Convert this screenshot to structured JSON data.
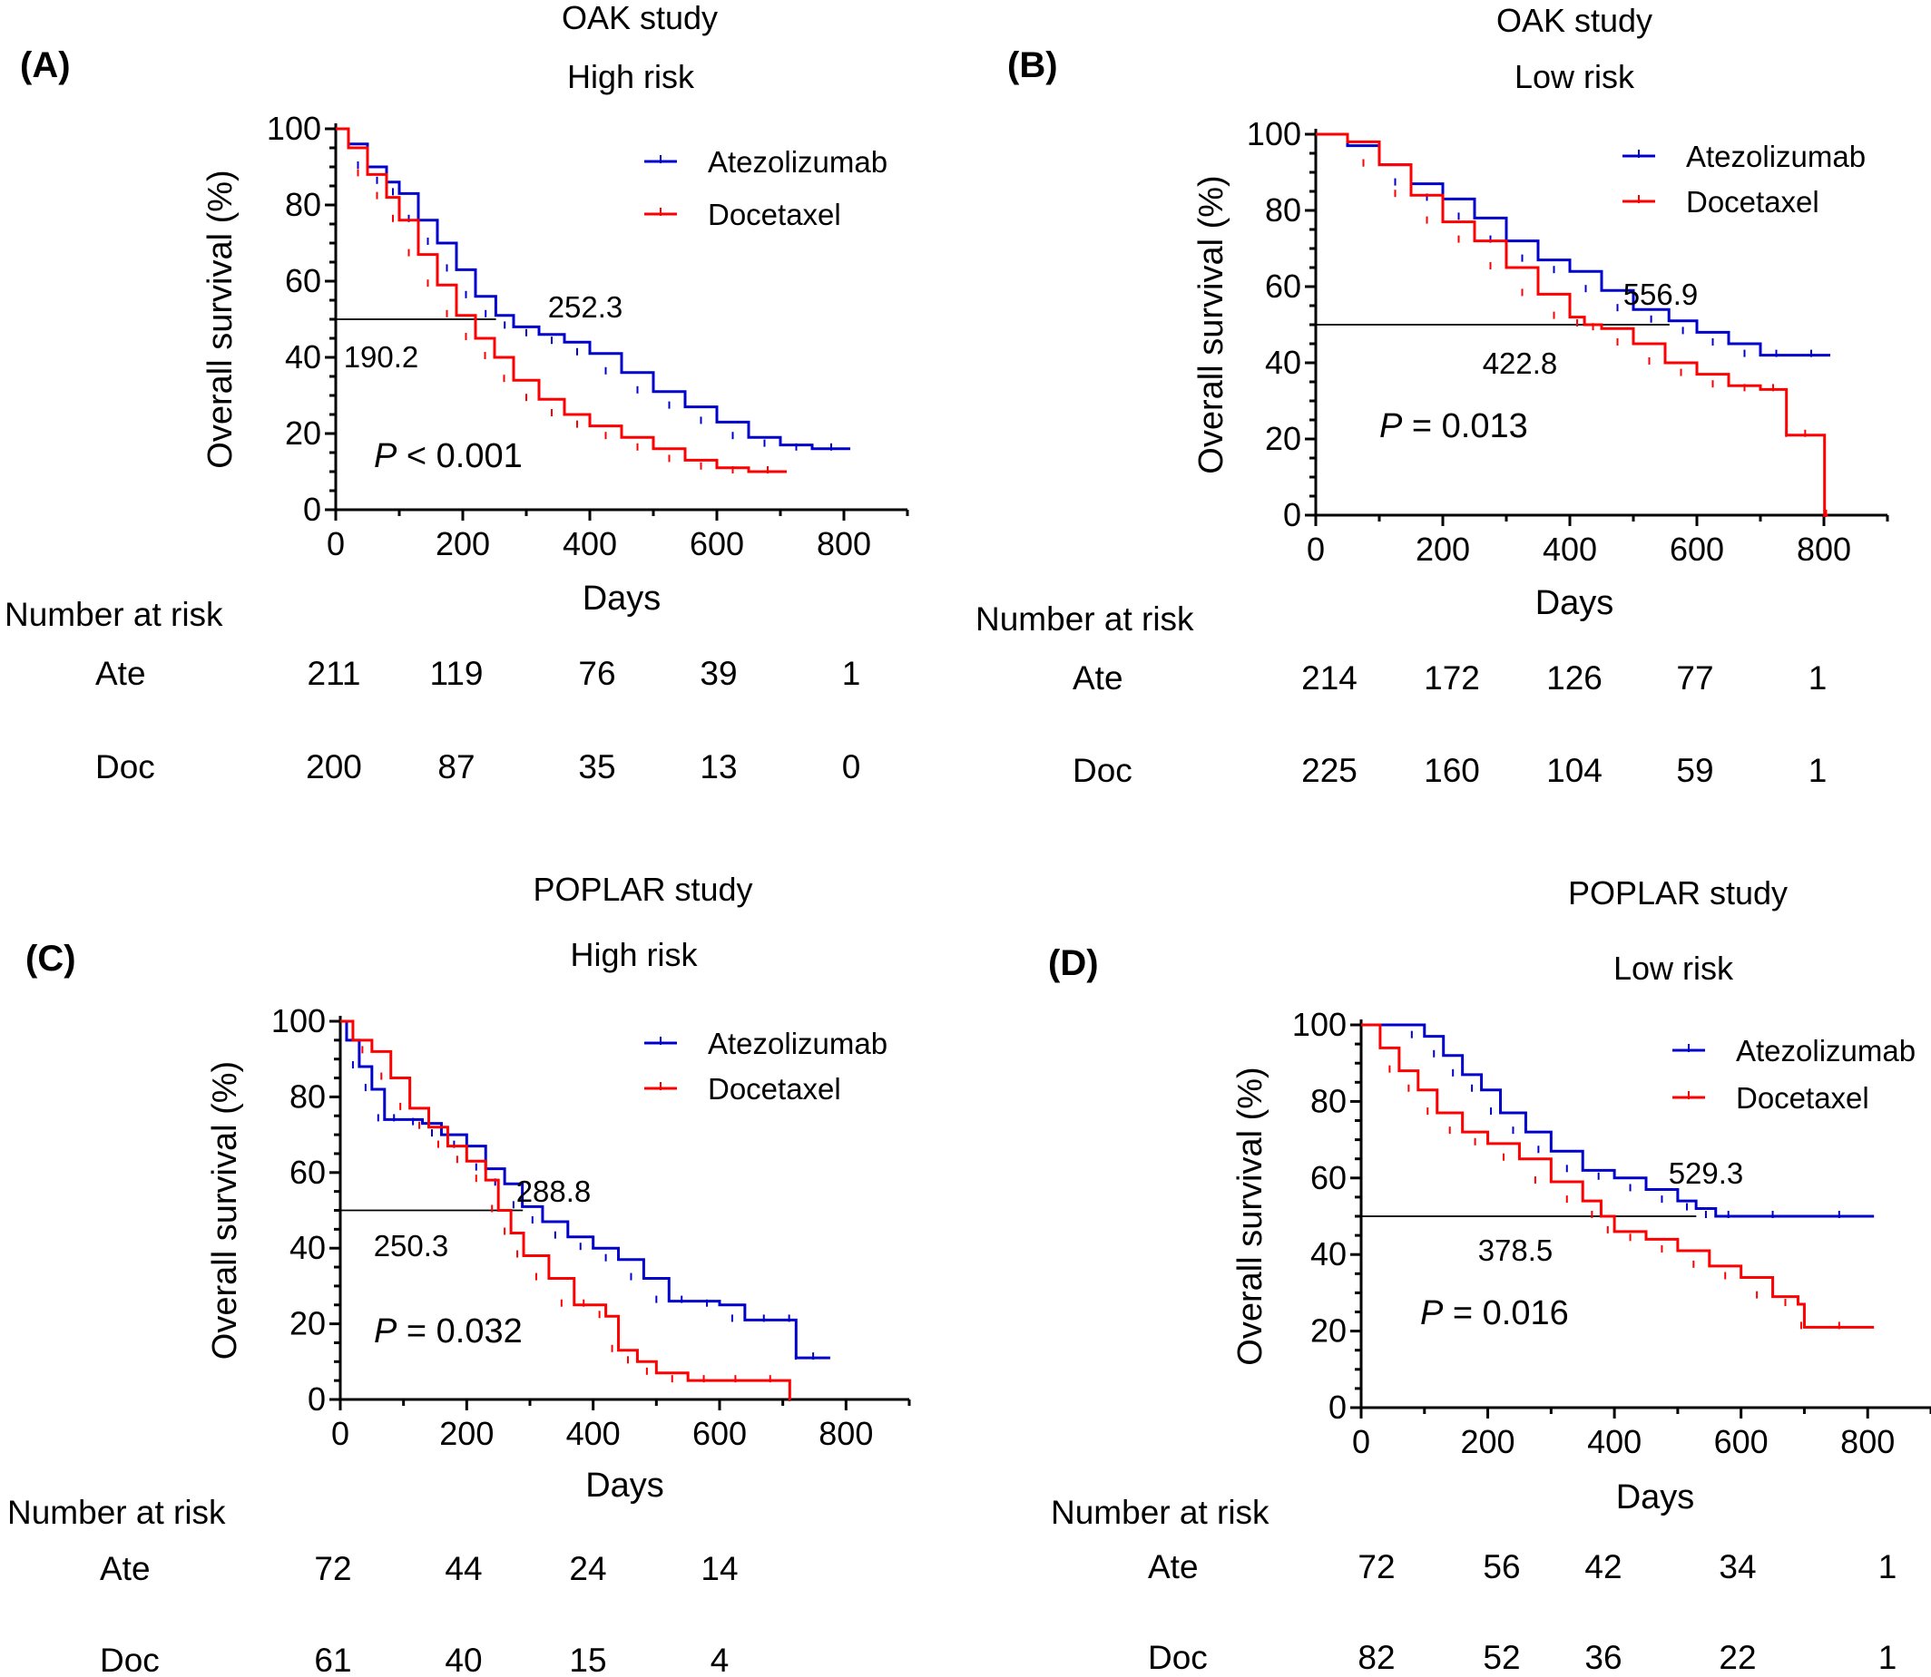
{
  "chart_data": [
    {
      "type": "line",
      "panel_label": "(A)",
      "title": "OAK study",
      "subtitle": "High risk",
      "xlabel": "Days",
      "ylabel": "Overall survival (%)",
      "xlim": [
        0,
        900
      ],
      "ylim": [
        0,
        100
      ],
      "xticks": [
        "0",
        "200",
        "400",
        "600",
        "800"
      ],
      "yticks": [
        "0",
        "20",
        "40",
        "60",
        "80",
        "100"
      ],
      "legend_position": "top-right",
      "series": [
        {
          "name": "Atezolizumab",
          "color": "#0000cc",
          "x": [
            0,
            20,
            50,
            80,
            100,
            130,
            160,
            190,
            220,
            252,
            280,
            320,
            360,
            400,
            450,
            500,
            550,
            600,
            650,
            700,
            750,
            810
          ],
          "y": [
            100,
            96,
            90,
            86,
            83,
            76,
            70,
            63,
            56,
            51,
            48,
            46,
            44,
            41,
            36,
            31,
            27,
            23,
            19,
            17,
            16,
            16
          ]
        },
        {
          "name": "Docetaxel",
          "color": "#ff0000",
          "x": [
            0,
            20,
            50,
            80,
            100,
            130,
            160,
            190,
            220,
            250,
            280,
            320,
            360,
            400,
            450,
            500,
            550,
            600,
            650,
            710
          ],
          "y": [
            100,
            95,
            88,
            82,
            76,
            67,
            59,
            51,
            45,
            40,
            34,
            29,
            25,
            22,
            19,
            16,
            13,
            11,
            10,
            10
          ]
        }
      ],
      "medians": [
        {
          "label": "252.3",
          "value": 252.3
        },
        {
          "label": "190.2",
          "value": 190.2
        }
      ],
      "p_label": "P",
      "p_text": " < 0.001",
      "risk_table": {
        "heading": "Number at risk",
        "rows": [
          {
            "label": "Ate",
            "values": [
              "211",
              "119",
              "76",
              "39",
              "1"
            ]
          },
          {
            "label": "Doc",
            "values": [
              "200",
              "87",
              "35",
              "13",
              "0"
            ]
          }
        ]
      }
    },
    {
      "type": "line",
      "panel_label": "(B)",
      "title": "OAK study",
      "subtitle": "Low risk",
      "xlabel": "Days",
      "ylabel": "Overall survival (%)",
      "xlim": [
        0,
        900
      ],
      "ylim": [
        0,
        100
      ],
      "xticks": [
        "0",
        "200",
        "400",
        "600",
        "800"
      ],
      "yticks": [
        "0",
        "20",
        "40",
        "60",
        "80",
        "100"
      ],
      "legend_position": "top-right",
      "series": [
        {
          "name": "Atezolizumab",
          "color": "#0000cc",
          "x": [
            0,
            50,
            100,
            150,
            200,
            250,
            300,
            350,
            400,
            450,
            500,
            556,
            600,
            650,
            700,
            750,
            810
          ],
          "y": [
            100,
            97,
            92,
            87,
            83,
            78,
            72,
            67,
            64,
            59,
            54,
            51,
            48,
            45,
            42,
            42,
            42
          ]
        },
        {
          "name": "Docetaxel",
          "color": "#ff0000",
          "x": [
            0,
            50,
            100,
            150,
            200,
            250,
            300,
            350,
            400,
            423,
            450,
            500,
            550,
            600,
            650,
            700,
            740,
            741,
            800,
            801,
            806
          ],
          "y": [
            100,
            98,
            92,
            84,
            77,
            72,
            65,
            58,
            52,
            50,
            49,
            45,
            40,
            37,
            34,
            33,
            33,
            21,
            21,
            0,
            0
          ]
        }
      ],
      "medians": [
        {
          "label": "556.9",
          "value": 556.9
        },
        {
          "label": "422.8",
          "value": 422.8
        }
      ],
      "p_label": "P",
      "p_text": " = 0.013",
      "risk_table": {
        "heading": "Number at risk",
        "rows": [
          {
            "label": "Ate",
            "values": [
              "214",
              "172",
              "126",
              "77",
              "1"
            ]
          },
          {
            "label": "Doc",
            "values": [
              "225",
              "160",
              "104",
              "59",
              "1"
            ]
          }
        ]
      }
    },
    {
      "type": "line",
      "panel_label": "(C)",
      "title": "POPLAR study",
      "subtitle": "High risk",
      "xlabel": "Days",
      "ylabel": "Overall survival (%)",
      "xlim": [
        0,
        900
      ],
      "ylim": [
        0,
        100
      ],
      "xticks": [
        "0",
        "200",
        "400",
        "600",
        "800"
      ],
      "yticks": [
        "0",
        "20",
        "40",
        "60",
        "80",
        "100"
      ],
      "legend_position": "top-right",
      "series": [
        {
          "name": "Atezolizumab",
          "color": "#0000cc",
          "x": [
            0,
            10,
            30,
            50,
            70,
            100,
            130,
            160,
            200,
            230,
            260,
            288,
            320,
            360,
            400,
            440,
            480,
            520,
            560,
            600,
            640,
            700,
            720,
            721,
            775
          ],
          "y": [
            100,
            95,
            88,
            82,
            74,
            74,
            73,
            70,
            67,
            61,
            57,
            51,
            47,
            43,
            40,
            37,
            32,
            26,
            26,
            25,
            21,
            21,
            21,
            11,
            11
          ]
        },
        {
          "name": "Docetaxel",
          "color": "#ff0000",
          "x": [
            0,
            20,
            50,
            80,
            110,
            140,
            170,
            200,
            230,
            250,
            270,
            290,
            330,
            370,
            400,
            420,
            440,
            470,
            500,
            550,
            600,
            650,
            710,
            711
          ],
          "y": [
            100,
            95,
            92,
            85,
            77,
            72,
            67,
            63,
            58,
            50,
            44,
            38,
            32,
            25,
            25,
            22,
            13,
            10,
            7,
            5,
            5,
            5,
            5,
            0
          ]
        }
      ],
      "medians": [
        {
          "label": "288.8",
          "value": 288.8
        },
        {
          "label": "250.3",
          "value": 250.3
        }
      ],
      "p_label": "P",
      "p_text": " = 0.032",
      "risk_table": {
        "heading": "Number at risk",
        "rows": [
          {
            "label": "Ate",
            "values": [
              "72",
              "44",
              "24",
              "14"
            ]
          },
          {
            "label": "Doc",
            "values": [
              "61",
              "40",
              "15",
              "4"
            ]
          }
        ]
      }
    },
    {
      "type": "line",
      "panel_label": "(D)",
      "title": "POPLAR study",
      "subtitle": "Low risk",
      "xlabel": "Days",
      "ylabel": "Overall survival (%)",
      "xlim": [
        0,
        900
      ],
      "ylim": [
        0,
        100
      ],
      "xticks": [
        "0",
        "200",
        "400",
        "600",
        "800"
      ],
      "yticks": [
        "0",
        "20",
        "40",
        "60",
        "80",
        "100"
      ],
      "legend_position": "top-right",
      "series": [
        {
          "name": "Atezolizumab",
          "color": "#0000cc",
          "x": [
            0,
            60,
            100,
            130,
            160,
            190,
            220,
            260,
            300,
            350,
            400,
            450,
            500,
            529,
            560,
            600,
            700,
            810
          ],
          "y": [
            100,
            100,
            97,
            92,
            87,
            83,
            77,
            72,
            67,
            62,
            60,
            57,
            54,
            52,
            50,
            50,
            50,
            50
          ]
        },
        {
          "name": "Docetaxel",
          "color": "#ff0000",
          "x": [
            0,
            30,
            60,
            90,
            120,
            160,
            200,
            250,
            300,
            350,
            379,
            400,
            450,
            500,
            550,
            600,
            650,
            690,
            700,
            810
          ],
          "y": [
            100,
            94,
            88,
            83,
            77,
            72,
            69,
            65,
            59,
            54,
            50,
            46,
            44,
            41,
            37,
            34,
            29,
            27,
            21,
            21
          ]
        }
      ],
      "medians": [
        {
          "label": "529.3",
          "value": 529.3
        },
        {
          "label": "378.5",
          "value": 378.5
        }
      ],
      "p_label": "P",
      "p_text": " = 0.016",
      "risk_table": {
        "heading": "Number at risk",
        "rows": [
          {
            "label": "Ate",
            "values": [
              "72",
              "56",
              "42",
              "34",
              "1"
            ]
          },
          {
            "label": "Doc",
            "values": [
              "82",
              "52",
              "36",
              "22",
              "1"
            ]
          }
        ]
      }
    }
  ]
}
